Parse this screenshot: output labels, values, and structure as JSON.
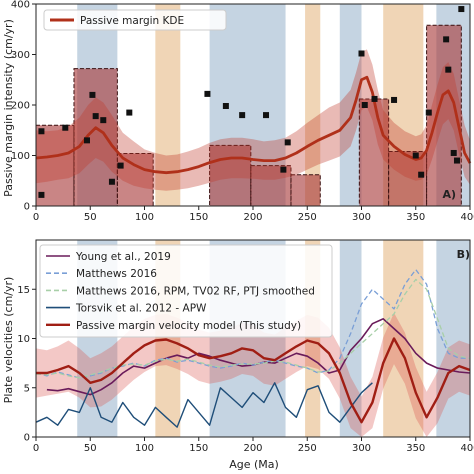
{
  "chart_data": [
    {
      "type": "bar",
      "panel_tag": "A)",
      "ylabel": "Passive margin intensity (cm/yr)",
      "xlim": [
        0,
        400
      ],
      "ylim": [
        0,
        400
      ],
      "x_ticks": [
        0,
        50,
        100,
        150,
        200,
        250,
        300,
        350,
        400
      ],
      "y_ticks": [
        0,
        100,
        200,
        300,
        400
      ],
      "legend": {
        "position": "top-left",
        "entries": [
          {
            "label": "Passive margin KDE",
            "color": "#b0301a"
          }
        ]
      },
      "bars": [
        {
          "x0": 0,
          "x1": 35,
          "value": 160
        },
        {
          "x0": 35,
          "x1": 75,
          "value": 272
        },
        {
          "x0": 75,
          "x1": 108,
          "value": 104
        },
        {
          "x0": 160,
          "x1": 198,
          "value": 120
        },
        {
          "x0": 198,
          "x1": 235,
          "value": 80
        },
        {
          "x0": 235,
          "x1": 262,
          "value": 62
        },
        {
          "x0": 298,
          "x1": 325,
          "value": 212
        },
        {
          "x0": 325,
          "x1": 360,
          "value": 108
        },
        {
          "x0": 360,
          "x1": 392,
          "value": 358
        }
      ],
      "bands": [
        {
          "x0": 38,
          "x1": 75,
          "color": "#7f9fbf"
        },
        {
          "x0": 110,
          "x1": 133,
          "color": "#dda15e"
        },
        {
          "x0": 160,
          "x1": 230,
          "color": "#7f9fbf"
        },
        {
          "x0": 248,
          "x1": 262,
          "color": "#dda15e"
        },
        {
          "x0": 280,
          "x1": 300,
          "color": "#7f9fbf"
        },
        {
          "x0": 320,
          "x1": 357,
          "color": "#dda15e"
        },
        {
          "x0": 369,
          "x1": 400,
          "color": "#7f9fbf"
        }
      ],
      "points": [
        [
          5,
          148
        ],
        [
          5,
          22
        ],
        [
          27,
          155
        ],
        [
          47,
          130
        ],
        [
          52,
          220
        ],
        [
          55,
          178
        ],
        [
          62,
          170
        ],
        [
          70,
          48
        ],
        [
          78,
          80
        ],
        [
          86,
          185
        ],
        [
          158,
          222
        ],
        [
          175,
          198
        ],
        [
          190,
          180
        ],
        [
          212,
          180
        ],
        [
          228,
          72
        ],
        [
          232,
          126
        ],
        [
          300,
          302
        ],
        [
          303,
          200
        ],
        [
          312,
          212
        ],
        [
          330,
          210
        ],
        [
          350,
          100
        ],
        [
          355,
          62
        ],
        [
          362,
          185
        ],
        [
          378,
          330
        ],
        [
          380,
          270
        ],
        [
          385,
          105
        ],
        [
          388,
          90
        ],
        [
          392,
          390
        ]
      ],
      "kde": {
        "x": [
          0,
          10,
          20,
          30,
          40,
          48,
          55,
          62,
          70,
          80,
          90,
          100,
          110,
          120,
          130,
          140,
          150,
          160,
          170,
          180,
          190,
          200,
          210,
          220,
          230,
          240,
          250,
          260,
          270,
          280,
          290,
          295,
          300,
          305,
          310,
          315,
          320,
          330,
          340,
          350,
          355,
          360,
          365,
          370,
          375,
          380,
          385,
          390,
          395,
          400
        ],
        "y": [
          95,
          97,
          100,
          105,
          118,
          140,
          155,
          145,
          120,
          95,
          82,
          72,
          68,
          66,
          68,
          72,
          78,
          86,
          92,
          95,
          95,
          92,
          90,
          90,
          95,
          105,
          118,
          130,
          140,
          150,
          175,
          210,
          250,
          255,
          225,
          175,
          140,
          118,
          102,
          92,
          95,
          110,
          145,
          185,
          220,
          228,
          205,
          155,
          105,
          85
        ],
        "upper": [
          150,
          148,
          150,
          158,
          175,
          200,
          215,
          205,
          180,
          145,
          128,
          112,
          105,
          100,
          102,
          108,
          115,
          125,
          132,
          135,
          135,
          132,
          128,
          130,
          135,
          148,
          165,
          180,
          195,
          205,
          230,
          265,
          305,
          310,
          280,
          230,
          190,
          165,
          148,
          138,
          142,
          160,
          200,
          240,
          275,
          285,
          262,
          210,
          160,
          130
        ],
        "lower": [
          45,
          48,
          52,
          55,
          65,
          82,
          95,
          88,
          68,
          50,
          40,
          35,
          32,
          30,
          32,
          35,
          40,
          46,
          52,
          55,
          55,
          54,
          52,
          52,
          56,
          62,
          72,
          82,
          90,
          98,
          118,
          150,
          190,
          196,
          170,
          122,
          92,
          72,
          58,
          50,
          52,
          62,
          92,
          128,
          162,
          172,
          150,
          102,
          58,
          42
        ]
      }
    },
    {
      "type": "line",
      "panel_tag": "B)",
      "xlabel": "Age (Ma)",
      "ylabel": "Plate velocities (cm/yr)",
      "xlim": [
        0,
        400
      ],
      "ylim": [
        0,
        20
      ],
      "x_ticks": [
        0,
        50,
        100,
        150,
        200,
        250,
        300,
        350,
        400
      ],
      "y_ticks": [
        0,
        5,
        10,
        15
      ],
      "legend": {
        "position": "top-left"
      },
      "bands": [
        {
          "x0": 38,
          "x1": 75,
          "color": "#7f9fbf"
        },
        {
          "x0": 110,
          "x1": 133,
          "color": "#dda15e"
        },
        {
          "x0": 160,
          "x1": 230,
          "color": "#7f9fbf"
        },
        {
          "x0": 248,
          "x1": 262,
          "color": "#dda15e"
        },
        {
          "x0": 280,
          "x1": 300,
          "color": "#7f9fbf"
        },
        {
          "x0": 320,
          "x1": 357,
          "color": "#dda15e"
        },
        {
          "x0": 369,
          "x1": 400,
          "color": "#7f9fbf"
        }
      ],
      "series": [
        {
          "name": "Young et al., 2019",
          "color": "#6a1b5a",
          "style": "solid",
          "width": 1.6,
          "x": [
            10,
            20,
            30,
            40,
            50,
            60,
            70,
            80,
            90,
            100,
            110,
            120,
            130,
            140,
            150,
            160,
            170,
            180,
            190,
            200,
            210,
            220,
            230,
            240,
            250,
            260,
            270,
            280,
            290,
            300,
            310,
            320,
            330,
            340,
            350,
            360,
            370,
            380,
            390,
            400
          ],
          "y": [
            4.8,
            4.7,
            4.9,
            4.6,
            4.3,
            4.8,
            5.5,
            6.5,
            7.2,
            7.0,
            7.5,
            8.0,
            8.3,
            8.0,
            8.5,
            8.2,
            7.8,
            7.5,
            7.2,
            7.3,
            7.6,
            7.5,
            8.0,
            8.5,
            8.2,
            7.5,
            6.5,
            6.8,
            8.8,
            10.0,
            11.5,
            12.0,
            11.0,
            10.0,
            8.5,
            7.5,
            7.0,
            6.8,
            6.6,
            6.5
          ]
        },
        {
          "name": "Matthews 2016",
          "color": "#7a9fd6",
          "style": "dashed",
          "width": 1.3,
          "x": [
            0,
            10,
            20,
            30,
            40,
            50,
            60,
            70,
            80,
            90,
            100,
            110,
            120,
            130,
            140,
            150,
            160,
            170,
            180,
            190,
            200,
            210,
            220,
            230,
            240,
            250,
            260,
            270,
            280,
            290,
            300,
            310,
            320,
            330,
            340,
            350,
            360,
            370,
            380,
            390,
            400
          ],
          "y": [
            6.5,
            6.2,
            6.6,
            6.3,
            6.0,
            6.2,
            6.5,
            7.0,
            7.2,
            7.5,
            7.2,
            7.8,
            8.0,
            7.6,
            7.8,
            7.5,
            7.2,
            7.0,
            7.2,
            7.5,
            7.3,
            7.6,
            7.8,
            7.5,
            7.2,
            7.0,
            6.5,
            6.8,
            8.0,
            10.5,
            13.5,
            15.0,
            14.0,
            13.0,
            15.5,
            17.0,
            15.5,
            11.0,
            8.5,
            8.0,
            8.0
          ]
        },
        {
          "name": "Matthews 2016, RPM, TV02 RF, PTJ smoothed",
          "color": "#a8cfa8",
          "style": "dashed",
          "width": 1.3,
          "x": [
            0,
            10,
            20,
            30,
            40,
            50,
            60,
            70,
            80,
            90,
            100,
            110,
            120,
            130,
            140,
            150,
            160,
            170,
            180,
            190,
            200,
            210,
            220,
            230,
            240,
            250,
            260,
            270,
            280,
            290,
            300,
            310,
            320,
            330,
            340,
            350,
            360,
            370,
            380,
            390,
            400
          ],
          "y": [
            6.4,
            6.3,
            6.5,
            6.2,
            6.0,
            6.3,
            6.6,
            7.0,
            7.3,
            7.4,
            7.3,
            7.7,
            7.9,
            7.7,
            7.9,
            7.6,
            7.3,
            7.1,
            7.3,
            7.4,
            7.4,
            7.5,
            7.7,
            7.6,
            7.3,
            7.0,
            6.6,
            6.7,
            7.5,
            8.5,
            9.5,
            10.5,
            11.5,
            12.5,
            14.5,
            16.0,
            15.0,
            12.0,
            9.0,
            8.2,
            8.0
          ]
        },
        {
          "name": "Torsvik et al. 2012 - APW",
          "color": "#1f4e79",
          "style": "solid",
          "width": 1.4,
          "x": [
            0,
            10,
            20,
            30,
            40,
            50,
            60,
            70,
            80,
            90,
            100,
            110,
            120,
            130,
            140,
            150,
            160,
            170,
            180,
            190,
            200,
            210,
            220,
            230,
            240,
            250,
            260,
            270,
            280,
            290,
            300,
            310
          ],
          "y": [
            1.5,
            2.0,
            1.2,
            2.8,
            2.5,
            5.0,
            2.0,
            1.5,
            3.5,
            2.0,
            1.2,
            3.0,
            2.0,
            1.0,
            3.8,
            2.5,
            1.2,
            5.0,
            4.0,
            3.0,
            4.5,
            3.5,
            5.5,
            3.0,
            2.0,
            4.8,
            5.2,
            2.5,
            1.5,
            3.0,
            4.5,
            5.5
          ]
        },
        {
          "name": "Passive margin velocity model (This study)",
          "color": "#a01e14",
          "style": "solid",
          "width": 2.4,
          "x": [
            0,
            10,
            20,
            30,
            40,
            50,
            60,
            70,
            80,
            90,
            100,
            110,
            120,
            130,
            140,
            150,
            160,
            170,
            180,
            190,
            200,
            210,
            220,
            230,
            240,
            250,
            260,
            270,
            280,
            290,
            300,
            310,
            320,
            330,
            340,
            350,
            360,
            370,
            380,
            390,
            400
          ],
          "y": [
            6.5,
            6.5,
            6.8,
            7.2,
            6.5,
            5.5,
            5.8,
            6.5,
            7.5,
            8.5,
            9.3,
            9.8,
            9.9,
            9.5,
            9.0,
            8.3,
            8.0,
            8.2,
            8.5,
            9.0,
            8.8,
            8.0,
            7.8,
            8.5,
            9.2,
            9.8,
            9.5,
            8.5,
            6.5,
            3.5,
            1.5,
            3.5,
            7.5,
            10.0,
            8.0,
            4.5,
            2.0,
            4.0,
            6.5,
            7.2,
            6.8
          ],
          "upper": [
            9.0,
            8.8,
            9.2,
            9.8,
            9.0,
            8.0,
            8.5,
            9.2,
            10.2,
            11.2,
            12.0,
            12.4,
            12.5,
            12.1,
            11.6,
            10.9,
            10.6,
            10.8,
            11.1,
            11.6,
            11.4,
            10.6,
            10.4,
            11.1,
            11.8,
            12.4,
            12.1,
            11.1,
            9.1,
            6.1,
            4.1,
            6.1,
            10.1,
            12.6,
            10.6,
            7.1,
            4.6,
            6.6,
            9.1,
            9.8,
            9.4
          ],
          "lower": [
            4.0,
            4.2,
            4.4,
            4.6,
            4.0,
            3.0,
            3.1,
            3.8,
            4.8,
            5.8,
            6.6,
            7.2,
            7.3,
            6.9,
            6.4,
            5.7,
            5.4,
            5.6,
            5.9,
            6.4,
            6.2,
            5.4,
            5.2,
            5.9,
            6.6,
            7.2,
            6.9,
            5.9,
            3.9,
            0.9,
            0.0,
            0.9,
            4.9,
            7.4,
            5.4,
            1.9,
            0.0,
            1.4,
            3.9,
            4.6,
            4.2
          ]
        }
      ]
    }
  ]
}
